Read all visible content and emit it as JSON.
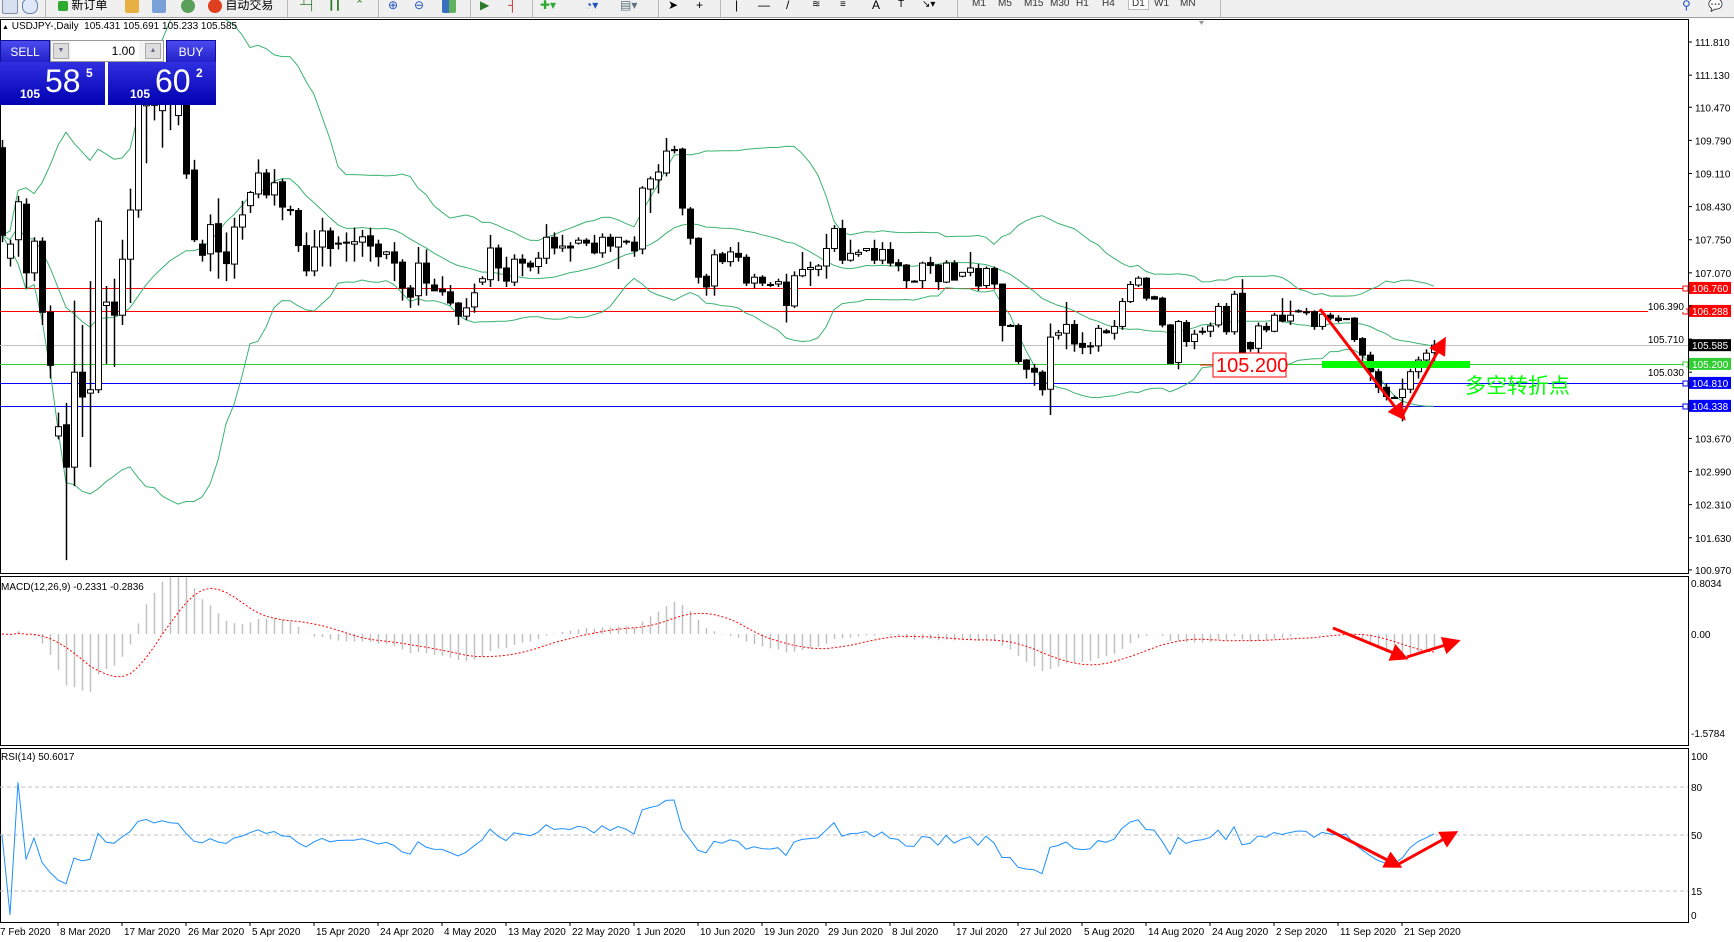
{
  "toolbar": {
    "new_order_label": "新订单",
    "auto_trading_label": "自动交易",
    "timeframes": [
      "M1",
      "M5",
      "M15",
      "M30",
      "H1",
      "H4",
      "D1",
      "W1",
      "MN"
    ],
    "active_timeframe": "D1"
  },
  "header": {
    "symbol": "USDJPY-,Daily",
    "ohlc_text": "105.431 105.691 105.233 105.585"
  },
  "trade_panel": {
    "sell_label": "SELL",
    "buy_label": "BUY",
    "lot": "1.00",
    "sell_price": {
      "prefix": "105",
      "big": "58",
      "sup": "5"
    },
    "buy_price": {
      "prefix": "105",
      "big": "60",
      "sup": "2"
    }
  },
  "price_axis": {
    "ticks": [
      "111.810",
      "111.130",
      "110.470",
      "109.790",
      "109.110",
      "108.430",
      "107.750",
      "107.070",
      "106.390",
      "105.710",
      "105.030",
      "103.670",
      "102.990",
      "102.310",
      "101.630",
      "100.970"
    ]
  },
  "hlines": [
    {
      "label": "106.760",
      "price": 106.76,
      "color": "#ff0000"
    },
    {
      "label": "106.288",
      "price": 106.288,
      "color": "#ff0000"
    },
    {
      "label": "105.585",
      "price": 105.585,
      "color": "#c0c0c0",
      "badge": "#000000"
    },
    {
      "label": "105.200",
      "price": 105.2,
      "color": "#32cd32",
      "badge": "#32cd32"
    },
    {
      "label": "104.810",
      "price": 104.81,
      "color": "#0000ff"
    },
    {
      "label": "104.338",
      "price": 104.338,
      "color": "#0000ff"
    }
  ],
  "annotations": {
    "level_label": "105.200",
    "pivot_text": "多空转折点",
    "arrow_color": "#ff0000",
    "pivot_color": "#00ff00"
  },
  "macd": {
    "label": "MACD(12,26,9) -0.2331 -0.2836",
    "ticks": [
      "0.8034",
      "0.00",
      "-1.5784"
    ]
  },
  "rsi": {
    "label": "RSI(14) 50.6017",
    "ticks": [
      "100",
      "80",
      "50",
      "15",
      "0"
    ]
  },
  "chart_data": {
    "type": "candlestick",
    "symbol": "USDJPY-",
    "timeframe": "Daily",
    "ylim": [
      100.97,
      111.81
    ],
    "x_tick_labels": [
      "7 Feb 2020",
      "8 Mar 2020",
      "17 Mar 2020",
      "26 Mar 2020",
      "5 Apr 2020",
      "15 Apr 2020",
      "24 Apr 2020",
      "4 May 2020",
      "13 May 2020",
      "22 May 2020",
      "1 Jun 2020",
      "10 Jun 2020",
      "19 Jun 2020",
      "29 Jun 2020",
      "8 Jul 2020",
      "17 Jul 2020",
      "27 Jul 2020",
      "5 Aug 2020",
      "14 Aug 2020",
      "24 Aug 2020",
      "2 Sep 2020",
      "11 Sep 2020",
      "21 Sep 2020"
    ],
    "indicators": [
      "Bollinger Bands",
      "MACD(12,26,9)",
      "RSI(14)"
    ],
    "colors": {
      "bands": "#3cb371",
      "rsi": "#1e90ff",
      "macd_signal": "#ff0000",
      "macd_hist": "#c0c0c0"
    },
    "ohlc": [
      [
        109.64,
        109.8,
        107.7,
        107.84
      ],
      [
        107.37,
        107.75,
        107.2,
        107.66
      ],
      [
        107.75,
        108.65,
        107.4,
        108.53
      ],
      [
        108.48,
        108.6,
        106.75,
        107.07
      ],
      [
        107.07,
        107.8,
        106.9,
        107.72
      ],
      [
        107.72,
        107.8,
        106.0,
        106.26
      ],
      [
        106.26,
        106.4,
        104.9,
        105.17
      ],
      [
        103.72,
        104.2,
        103.65,
        103.91
      ],
      [
        103.95,
        104.4,
        101.17,
        103.08
      ],
      [
        103.08,
        106.5,
        102.69,
        105.03
      ],
      [
        105.03,
        106.0,
        103.7,
        104.52
      ],
      [
        104.6,
        106.9,
        103.08,
        104.67
      ],
      [
        104.67,
        108.2,
        104.6,
        108.13
      ],
      [
        106.4,
        106.8,
        105.2,
        106.47
      ],
      [
        106.47,
        106.95,
        105.14,
        106.2
      ],
      [
        106.2,
        107.75,
        106.0,
        107.35
      ],
      [
        107.35,
        108.8,
        106.45,
        108.36
      ],
      [
        108.36,
        111.0,
        108.2,
        110.6
      ],
      [
        110.5,
        111.5,
        109.32,
        111.1
      ],
      [
        110.9,
        111.3,
        110.2,
        110.51
      ],
      [
        110.4,
        111.3,
        109.64,
        111.0
      ],
      [
        110.8,
        111.4,
        110.0,
        110.7
      ],
      [
        110.3,
        110.8,
        110.1,
        110.6
      ],
      [
        110.6,
        111.0,
        109.0,
        109.1
      ],
      [
        109.18,
        109.39,
        107.7,
        107.75
      ],
      [
        107.66,
        107.75,
        107.3,
        107.43
      ],
      [
        107.46,
        108.27,
        107.1,
        108.06
      ],
      [
        108.08,
        108.6,
        106.95,
        107.5
      ],
      [
        107.5,
        107.9,
        106.9,
        107.26
      ],
      [
        107.25,
        108.2,
        106.95,
        108.01
      ],
      [
        108.01,
        108.55,
        107.75,
        108.26
      ],
      [
        108.45,
        108.75,
        108.3,
        108.72
      ],
      [
        108.69,
        109.4,
        108.6,
        109.12
      ],
      [
        109.12,
        109.2,
        108.6,
        108.67
      ],
      [
        108.67,
        109.2,
        108.45,
        108.92
      ],
      [
        108.94,
        109.0,
        108.15,
        108.42
      ],
      [
        108.37,
        108.45,
        108.25,
        108.35
      ],
      [
        108.35,
        108.4,
        107.5,
        107.63
      ],
      [
        107.63,
        107.9,
        107.0,
        107.11
      ],
      [
        107.11,
        107.95,
        107.0,
        107.6
      ],
      [
        107.6,
        108.2,
        107.2,
        107.93
      ],
      [
        107.93,
        108.0,
        107.2,
        107.57
      ],
      [
        107.66,
        107.82,
        107.55,
        107.68
      ],
      [
        107.68,
        107.9,
        107.3,
        107.7
      ],
      [
        107.66,
        108.0,
        107.3,
        107.71
      ],
      [
        107.7,
        107.95,
        107.4,
        107.81
      ],
      [
        107.83,
        108.0,
        107.3,
        107.62
      ],
      [
        107.66,
        107.75,
        107.2,
        107.4
      ],
      [
        107.45,
        107.52,
        107.35,
        107.5
      ],
      [
        107.5,
        107.7,
        106.9,
        107.27
      ],
      [
        107.29,
        107.35,
        106.5,
        106.76
      ],
      [
        106.76,
        106.82,
        106.35,
        106.57
      ],
      [
        106.6,
        107.6,
        106.4,
        107.27
      ],
      [
        107.27,
        107.55,
        106.6,
        106.86
      ],
      [
        106.82,
        106.95,
        106.7,
        106.7
      ],
      [
        106.73,
        107.0,
        106.6,
        106.68
      ],
      [
        106.68,
        106.82,
        106.4,
        106.45
      ],
      [
        106.45,
        106.47,
        106.0,
        106.18
      ],
      [
        106.18,
        106.55,
        106.1,
        106.35
      ],
      [
        106.37,
        106.85,
        106.25,
        106.66
      ],
      [
        106.88,
        107.0,
        106.82,
        106.95
      ],
      [
        106.93,
        107.85,
        106.78,
        107.58
      ],
      [
        107.58,
        107.65,
        106.9,
        107.17
      ],
      [
        107.17,
        107.4,
        106.78,
        106.9
      ],
      [
        106.88,
        107.45,
        106.8,
        107.35
      ],
      [
        107.35,
        107.45,
        107.0,
        107.27
      ],
      [
        107.27,
        107.32,
        107.1,
        107.19
      ],
      [
        107.2,
        107.5,
        107.05,
        107.37
      ],
      [
        107.37,
        108.07,
        107.25,
        107.8
      ],
      [
        107.8,
        107.9,
        107.45,
        107.58
      ],
      [
        107.58,
        107.85,
        107.5,
        107.62
      ],
      [
        107.62,
        107.7,
        107.3,
        107.58
      ],
      [
        107.68,
        107.8,
        107.65,
        107.74
      ],
      [
        107.74,
        107.78,
        107.62,
        107.68
      ],
      [
        107.68,
        107.85,
        107.45,
        107.48
      ],
      [
        107.48,
        107.88,
        107.38,
        107.8
      ],
      [
        107.8,
        107.87,
        107.5,
        107.62
      ],
      [
        107.6,
        107.8,
        107.15,
        107.8
      ],
      [
        107.72,
        107.75,
        107.65,
        107.7
      ],
      [
        107.7,
        107.82,
        107.4,
        107.52
      ],
      [
        107.56,
        108.85,
        107.45,
        108.81
      ],
      [
        108.79,
        109.05,
        108.3,
        109.0
      ],
      [
        108.98,
        109.3,
        108.7,
        109.14
      ],
      [
        109.12,
        109.84,
        109.05,
        109.57
      ],
      [
        109.58,
        109.68,
        109.52,
        109.6
      ],
      [
        109.61,
        109.64,
        108.25,
        108.4
      ],
      [
        108.38,
        108.42,
        107.65,
        107.78
      ],
      [
        107.78,
        107.8,
        106.85,
        106.98
      ],
      [
        107.0,
        107.05,
        106.6,
        106.78
      ],
      [
        106.8,
        107.55,
        106.6,
        107.44
      ],
      [
        107.46,
        107.5,
        107.25,
        107.3
      ],
      [
        107.3,
        107.6,
        107.2,
        107.5
      ],
      [
        107.47,
        107.7,
        107.3,
        107.39
      ],
      [
        107.39,
        107.45,
        106.8,
        106.86
      ],
      [
        106.86,
        107.05,
        106.75,
        106.98
      ],
      [
        106.98,
        107.02,
        106.8,
        106.86
      ],
      [
        106.82,
        106.88,
        106.78,
        106.83
      ],
      [
        106.84,
        106.95,
        106.78,
        106.89
      ],
      [
        106.88,
        107.05,
        106.05,
        106.4
      ],
      [
        106.39,
        107.1,
        106.35,
        107.01
      ],
      [
        107.01,
        107.5,
        106.98,
        107.14
      ],
      [
        107.14,
        107.3,
        106.8,
        107.18
      ],
      [
        107.14,
        107.25,
        107.0,
        107.21
      ],
      [
        107.21,
        107.87,
        106.95,
        107.57
      ],
      [
        107.57,
        108.05,
        107.5,
        107.98
      ],
      [
        107.98,
        108.16,
        107.25,
        107.33
      ],
      [
        107.33,
        107.75,
        107.3,
        107.47
      ],
      [
        107.45,
        107.55,
        107.4,
        107.49
      ],
      [
        107.53,
        107.57,
        107.5,
        107.57
      ],
      [
        107.57,
        107.75,
        107.25,
        107.33
      ],
      [
        107.33,
        107.7,
        107.25,
        107.55
      ],
      [
        107.55,
        107.7,
        107.2,
        107.27
      ],
      [
        107.28,
        107.35,
        107.1,
        107.22
      ],
      [
        107.23,
        107.25,
        106.75,
        106.91
      ],
      [
        106.9,
        106.92,
        106.87,
        106.89
      ],
      [
        106.91,
        107.3,
        106.75,
        107.27
      ],
      [
        107.28,
        107.4,
        107.05,
        107.22
      ],
      [
        107.23,
        107.25,
        106.72,
        106.89
      ],
      [
        106.88,
        107.33,
        106.86,
        107.27
      ],
      [
        107.27,
        107.33,
        106.92,
        106.92
      ],
      [
        107.0,
        107.08,
        106.98,
        107.08
      ],
      [
        107.08,
        107.5,
        107.0,
        107.17
      ],
      [
        107.16,
        107.25,
        106.7,
        106.8
      ],
      [
        106.81,
        107.2,
        106.75,
        107.16
      ],
      [
        107.16,
        107.2,
        106.73,
        106.84
      ],
      [
        106.84,
        106.85,
        105.66,
        105.99
      ],
      [
        105.99,
        106.02,
        105.97,
        105.99
      ],
      [
        105.99,
        106.03,
        105.2,
        105.25
      ],
      [
        105.28,
        105.3,
        104.9,
        105.09
      ],
      [
        105.11,
        105.2,
        104.75,
        105.03
      ],
      [
        105.03,
        105.07,
        104.55,
        104.67
      ],
      [
        104.68,
        106.03,
        104.15,
        105.75
      ],
      [
        105.79,
        105.9,
        105.7,
        105.84
      ],
      [
        105.83,
        106.47,
        105.5,
        106.01
      ],
      [
        106.01,
        106.1,
        105.45,
        105.61
      ],
      [
        105.62,
        105.85,
        105.4,
        105.54
      ],
      [
        105.57,
        105.65,
        105.4,
        105.57
      ],
      [
        105.57,
        106.0,
        105.45,
        105.93
      ],
      [
        105.88,
        105.92,
        105.82,
        105.84
      ],
      [
        105.83,
        106.1,
        105.7,
        105.97
      ],
      [
        105.97,
        106.55,
        105.9,
        106.48
      ],
      [
        106.48,
        106.9,
        106.45,
        106.83
      ],
      [
        106.82,
        107.0,
        106.78,
        106.96
      ],
      [
        106.96,
        106.98,
        106.5,
        106.55
      ],
      [
        106.58,
        106.6,
        106.52,
        106.53
      ],
      [
        106.55,
        106.58,
        105.95,
        106.0
      ],
      [
        106.0,
        106.02,
        105.21,
        105.21
      ],
      [
        105.23,
        106.1,
        105.09,
        106.07
      ],
      [
        106.05,
        106.1,
        105.55,
        105.66
      ],
      [
        105.66,
        105.9,
        105.5,
        105.81
      ],
      [
        105.85,
        105.95,
        105.8,
        105.87
      ],
      [
        105.87,
        106.05,
        105.75,
        105.98
      ],
      [
        106.0,
        106.45,
        105.95,
        106.38
      ],
      [
        106.38,
        106.45,
        105.8,
        105.86
      ],
      [
        105.86,
        106.7,
        105.8,
        106.63
      ],
      [
        106.65,
        106.94,
        105.3,
        105.42
      ],
      [
        105.64,
        105.66,
        105.45,
        105.51
      ],
      [
        105.52,
        106.05,
        105.4,
        105.98
      ],
      [
        105.97,
        106.05,
        105.85,
        105.9
      ],
      [
        105.87,
        106.25,
        105.85,
        106.2
      ],
      [
        106.2,
        106.55,
        106.05,
        106.08
      ],
      [
        106.08,
        106.5,
        106.0,
        106.2
      ],
      [
        106.27,
        106.32,
        106.25,
        106.29
      ],
      [
        106.27,
        106.35,
        106.2,
        106.27
      ],
      [
        106.27,
        106.3,
        105.9,
        105.97
      ],
      [
        105.97,
        106.3,
        105.9,
        106.22
      ],
      [
        106.2,
        106.25,
        106.1,
        106.14
      ],
      [
        106.14,
        106.2,
        106.05,
        106.09
      ],
      [
        106.12,
        106.14,
        106.1,
        106.13
      ],
      [
        106.14,
        106.16,
        105.65,
        105.7
      ],
      [
        105.72,
        105.75,
        105.25,
        105.38
      ],
      [
        105.38,
        105.45,
        104.85,
        105.04
      ],
      [
        105.04,
        105.1,
        104.6,
        104.72
      ],
      [
        104.72,
        104.8,
        104.45,
        104.53
      ],
      [
        104.5,
        104.55,
        104.48,
        104.51
      ],
      [
        104.51,
        104.9,
        104.02,
        104.68
      ],
      [
        104.68,
        105.1,
        104.6,
        105.04
      ],
      [
        105.04,
        105.35,
        104.9,
        105.28
      ],
      [
        105.28,
        105.5,
        105.2,
        105.42
      ],
      [
        105.431,
        105.691,
        105.233,
        105.585
      ]
    ]
  }
}
